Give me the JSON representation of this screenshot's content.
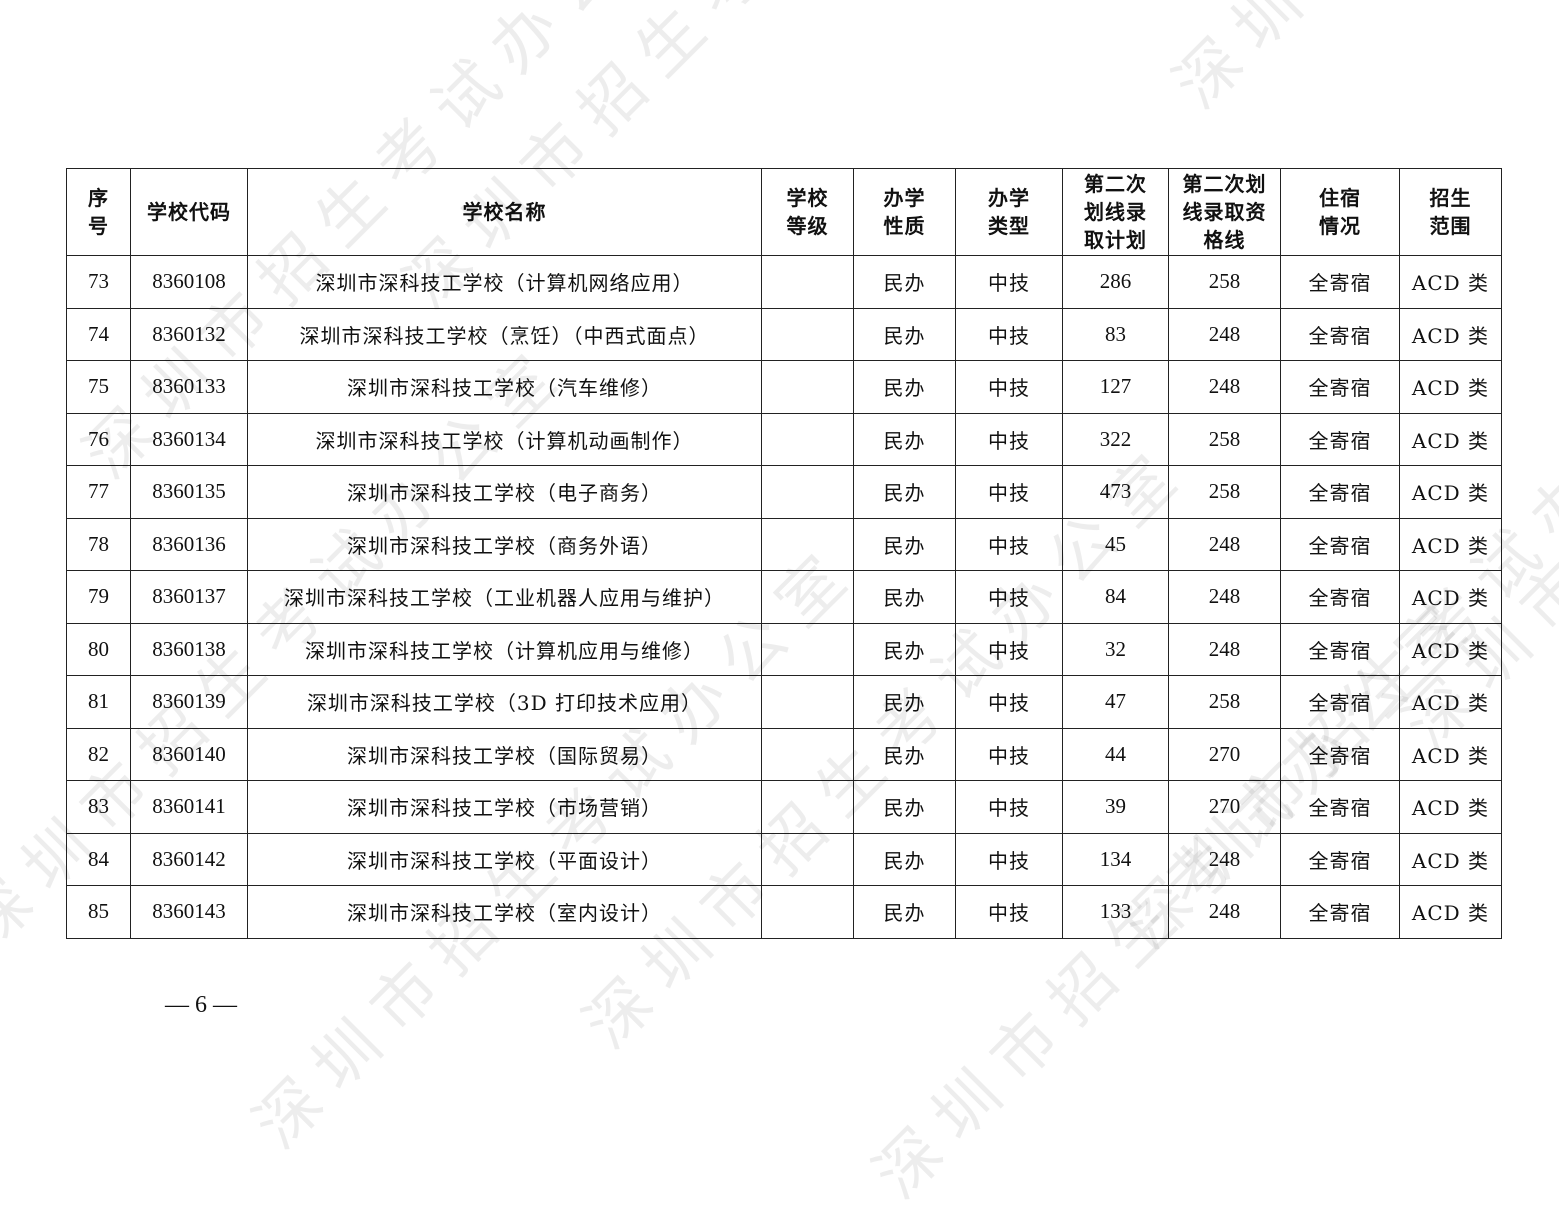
{
  "table": {
    "headers": [
      "序\n号",
      "学校代码",
      "学校名称",
      "学校\n等级",
      "办学\n性质",
      "办学\n类型",
      "第二次\n划线录\n取计划",
      "第二次划\n线录取资\n格线",
      "住宿\n情况",
      "招生\n范围"
    ],
    "rows": [
      [
        "73",
        "8360108",
        "深圳市深科技工学校（计算机网络应用）",
        "",
        "民办",
        "中技",
        "286",
        "258",
        "全寄宿",
        "ACD 类"
      ],
      [
        "74",
        "8360132",
        "深圳市深科技工学校（烹饪）（中西式面点）",
        "",
        "民办",
        "中技",
        "83",
        "248",
        "全寄宿",
        "ACD 类"
      ],
      [
        "75",
        "8360133",
        "深圳市深科技工学校（汽车维修）",
        "",
        "民办",
        "中技",
        "127",
        "248",
        "全寄宿",
        "ACD 类"
      ],
      [
        "76",
        "8360134",
        "深圳市深科技工学校（计算机动画制作）",
        "",
        "民办",
        "中技",
        "322",
        "258",
        "全寄宿",
        "ACD 类"
      ],
      [
        "77",
        "8360135",
        "深圳市深科技工学校（电子商务）",
        "",
        "民办",
        "中技",
        "473",
        "258",
        "全寄宿",
        "ACD 类"
      ],
      [
        "78",
        "8360136",
        "深圳市深科技工学校（商务外语）",
        "",
        "民办",
        "中技",
        "45",
        "248",
        "全寄宿",
        "ACD 类"
      ],
      [
        "79",
        "8360137",
        "深圳市深科技工学校（工业机器人应用与维护）",
        "",
        "民办",
        "中技",
        "84",
        "248",
        "全寄宿",
        "ACD 类"
      ],
      [
        "80",
        "8360138",
        "深圳市深科技工学校（计算机应用与维修）",
        "",
        "民办",
        "中技",
        "32",
        "248",
        "全寄宿",
        "ACD 类"
      ],
      [
        "81",
        "8360139",
        "深圳市深科技工学校（3D 打印技术应用）",
        "",
        "民办",
        "中技",
        "47",
        "258",
        "全寄宿",
        "ACD 类"
      ],
      [
        "82",
        "8360140",
        "深圳市深科技工学校（国际贸易）",
        "",
        "民办",
        "中技",
        "44",
        "270",
        "全寄宿",
        "ACD 类"
      ],
      [
        "83",
        "8360141",
        "深圳市深科技工学校（市场营销）",
        "",
        "民办",
        "中技",
        "39",
        "270",
        "全寄宿",
        "ACD 类"
      ],
      [
        "84",
        "8360142",
        "深圳市深科技工学校（平面设计）",
        "",
        "民办",
        "中技",
        "134",
        "248",
        "全寄宿",
        "ACD 类"
      ],
      [
        "85",
        "8360143",
        "深圳市深科技工学校（室内设计）",
        "",
        "民办",
        "中技",
        "133",
        "248",
        "全寄宿",
        "ACD 类"
      ]
    ]
  },
  "page_number": "— 6 —",
  "watermark": "深圳市招生考试办公室"
}
